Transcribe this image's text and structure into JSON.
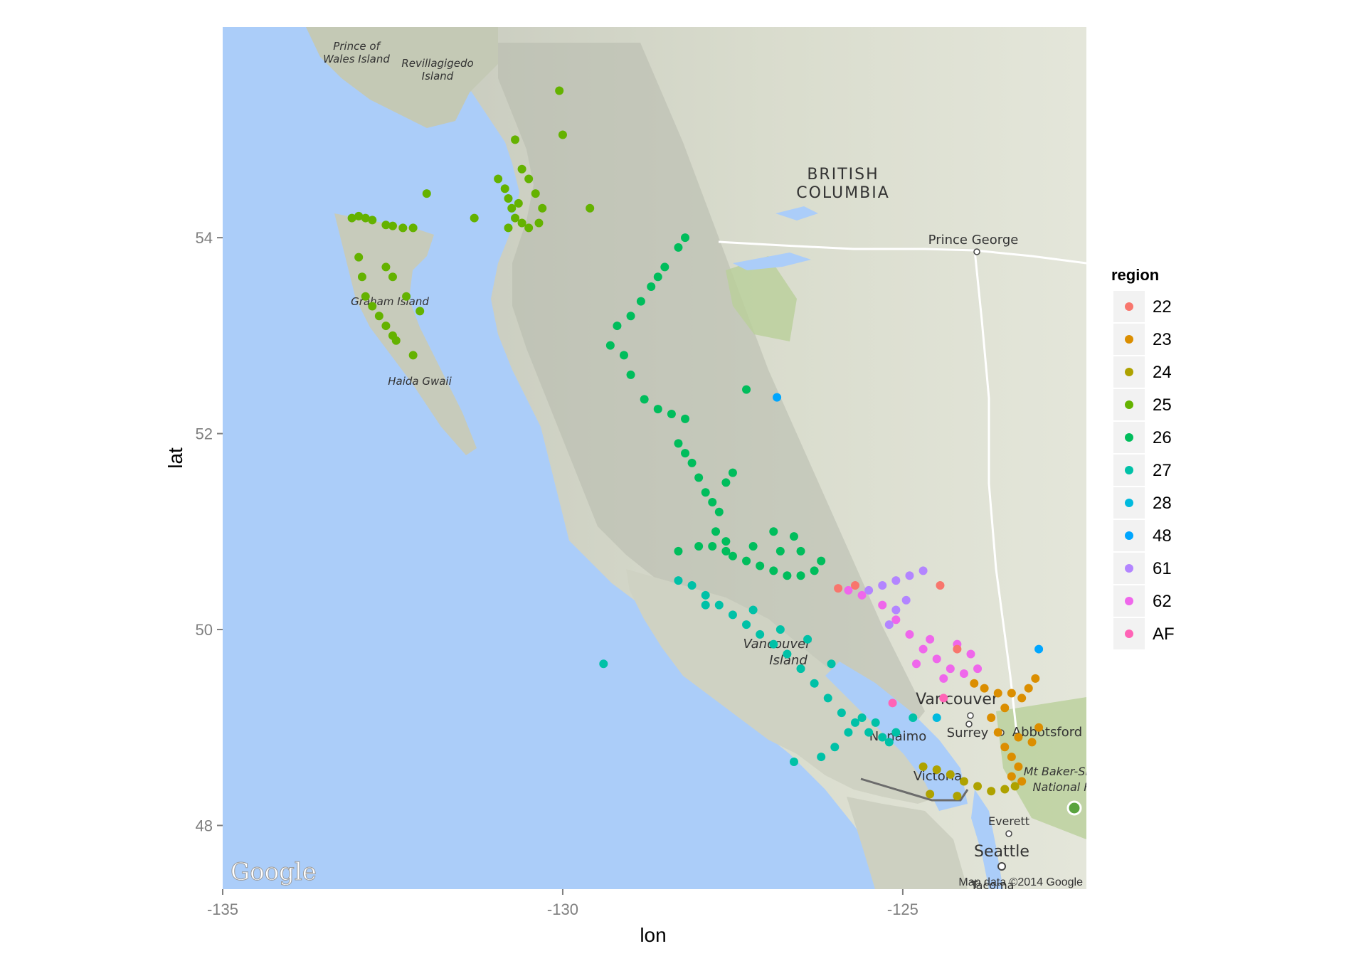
{
  "chart_data": {
    "type": "scatter",
    "title": "",
    "xlabel": "lon",
    "ylabel": "lat",
    "xlim": [
      -135.0,
      -122.3
    ],
    "ylim": [
      47.35,
      56.15
    ],
    "x_ticks": [
      -135,
      -130,
      -125
    ],
    "x_tick_labels": [
      "-135",
      "-130",
      "-125"
    ],
    "y_ticks": [
      48,
      50,
      52,
      54
    ],
    "y_tick_labels": [
      "48",
      "50",
      "52",
      "54"
    ],
    "grid": false,
    "background": "map",
    "legend": {
      "title": "region",
      "placement": "right",
      "entries": [
        {
          "label": "22",
          "color": "#F8766D"
        },
        {
          "label": "23",
          "color": "#DB8E00"
        },
        {
          "label": "24",
          "color": "#AEA200"
        },
        {
          "label": "25",
          "color": "#64B200"
        },
        {
          "label": "26",
          "color": "#00BD5C"
        },
        {
          "label": "27",
          "color": "#00C1A7"
        },
        {
          "label": "28",
          "color": "#00BADE"
        },
        {
          "label": "48",
          "color": "#00A6FF"
        },
        {
          "label": "61",
          "color": "#B385FF"
        },
        {
          "label": "62",
          "color": "#EF67EB"
        },
        {
          "label": "AF",
          "color": "#FF63B6"
        }
      ]
    },
    "series": [
      {
        "name": "25",
        "color": "#64B200",
        "points": [
          [
            -133.1,
            54.2
          ],
          [
            -133.0,
            54.22
          ],
          [
            -132.9,
            54.2
          ],
          [
            -132.8,
            54.18
          ],
          [
            -132.6,
            54.13
          ],
          [
            -132.5,
            54.12
          ],
          [
            -132.35,
            54.1
          ],
          [
            -132.2,
            54.1
          ],
          [
            -133.0,
            53.8
          ],
          [
            -132.95,
            53.6
          ],
          [
            -132.9,
            53.4
          ],
          [
            -132.8,
            53.3
          ],
          [
            -132.7,
            53.2
          ],
          [
            -132.6,
            53.1
          ],
          [
            -132.5,
            53.0
          ],
          [
            -132.45,
            52.95
          ],
          [
            -132.6,
            53.7
          ],
          [
            -132.5,
            53.6
          ],
          [
            -132.3,
            53.4
          ],
          [
            -132.1,
            53.25
          ],
          [
            -132.2,
            52.8
          ],
          [
            -132.0,
            54.45
          ],
          [
            -131.3,
            54.2
          ],
          [
            -130.95,
            54.6
          ],
          [
            -130.85,
            54.5
          ],
          [
            -130.8,
            54.4
          ],
          [
            -130.75,
            54.3
          ],
          [
            -130.7,
            54.2
          ],
          [
            -130.6,
            54.15
          ],
          [
            -130.5,
            54.1
          ],
          [
            -130.6,
            54.7
          ],
          [
            -130.5,
            54.6
          ],
          [
            -130.4,
            54.45
          ],
          [
            -130.3,
            54.3
          ],
          [
            -130.35,
            54.15
          ],
          [
            -130.8,
            54.1
          ],
          [
            -130.65,
            54.35
          ],
          [
            -130.7,
            55.0
          ],
          [
            -130.0,
            55.05
          ],
          [
            -130.05,
            55.5
          ],
          [
            -129.6,
            54.3
          ]
        ]
      },
      {
        "name": "26",
        "color": "#00BD5C",
        "points": [
          [
            -128.2,
            54.0
          ],
          [
            -128.3,
            53.9
          ],
          [
            -128.5,
            53.7
          ],
          [
            -128.6,
            53.6
          ],
          [
            -128.7,
            53.5
          ],
          [
            -128.85,
            53.35
          ],
          [
            -129.0,
            53.2
          ],
          [
            -129.2,
            53.1
          ],
          [
            -129.3,
            52.9
          ],
          [
            -129.1,
            52.8
          ],
          [
            -129.0,
            52.6
          ],
          [
            -128.8,
            52.35
          ],
          [
            -128.6,
            52.25
          ],
          [
            -128.4,
            52.2
          ],
          [
            -128.2,
            52.15
          ],
          [
            -128.3,
            51.9
          ],
          [
            -128.2,
            51.8
          ],
          [
            -128.1,
            51.7
          ],
          [
            -128.0,
            51.55
          ],
          [
            -127.9,
            51.4
          ],
          [
            -127.8,
            51.3
          ],
          [
            -127.7,
            51.2
          ],
          [
            -127.75,
            51.0
          ],
          [
            -127.8,
            50.85
          ],
          [
            -127.6,
            50.8
          ],
          [
            -127.5,
            50.75
          ],
          [
            -127.3,
            50.7
          ],
          [
            -127.1,
            50.65
          ],
          [
            -126.9,
            50.6
          ],
          [
            -126.7,
            50.55
          ],
          [
            -126.5,
            50.55
          ],
          [
            -126.3,
            50.6
          ],
          [
            -126.2,
            50.7
          ],
          [
            -126.5,
            50.8
          ],
          [
            -126.8,
            50.8
          ],
          [
            -127.2,
            50.85
          ],
          [
            -127.6,
            50.9
          ],
          [
            -128.0,
            50.85
          ],
          [
            -128.3,
            50.8
          ],
          [
            -127.5,
            51.6
          ],
          [
            -127.6,
            51.5
          ],
          [
            -127.3,
            52.45
          ],
          [
            -126.9,
            51.0
          ],
          [
            -126.6,
            50.95
          ]
        ]
      },
      {
        "name": "27",
        "color": "#00C1A7",
        "points": [
          [
            -128.3,
            50.5
          ],
          [
            -128.1,
            50.45
          ],
          [
            -127.9,
            50.35
          ],
          [
            -127.7,
            50.25
          ],
          [
            -127.5,
            50.15
          ],
          [
            -127.3,
            50.05
          ],
          [
            -127.1,
            49.95
          ],
          [
            -126.9,
            49.85
          ],
          [
            -126.7,
            49.75
          ],
          [
            -126.5,
            49.6
          ],
          [
            -126.3,
            49.45
          ],
          [
            -126.1,
            49.3
          ],
          [
            -125.9,
            49.15
          ],
          [
            -125.7,
            49.05
          ],
          [
            -125.5,
            48.95
          ],
          [
            -125.3,
            48.9
          ],
          [
            -125.2,
            48.85
          ],
          [
            -125.1,
            48.95
          ],
          [
            -125.4,
            49.05
          ],
          [
            -125.6,
            49.1
          ],
          [
            -125.8,
            48.95
          ],
          [
            -126.0,
            48.8
          ],
          [
            -126.2,
            48.7
          ],
          [
            -126.6,
            48.65
          ],
          [
            -129.4,
            49.65
          ],
          [
            -127.2,
            50.2
          ],
          [
            -126.8,
            50.0
          ],
          [
            -126.4,
            49.9
          ],
          [
            -127.9,
            50.25
          ],
          [
            -126.05,
            49.65
          ],
          [
            -124.85,
            49.1
          ]
        ]
      },
      {
        "name": "28",
        "color": "#00BADE",
        "points": [
          [
            -124.5,
            49.1
          ]
        ]
      },
      {
        "name": "48",
        "color": "#00A6FF",
        "points": [
          [
            -126.85,
            52.37
          ],
          [
            -123.0,
            49.8
          ]
        ]
      },
      {
        "name": "61",
        "color": "#B385FF",
        "points": [
          [
            -125.5,
            50.4
          ],
          [
            -125.3,
            50.45
          ],
          [
            -125.1,
            50.5
          ],
          [
            -124.9,
            50.55
          ],
          [
            -124.95,
            50.3
          ],
          [
            -125.1,
            50.2
          ],
          [
            -125.2,
            50.05
          ],
          [
            -124.7,
            50.6
          ]
        ]
      },
      {
        "name": "62",
        "color": "#EF67EB",
        "points": [
          [
            -125.8,
            50.4
          ],
          [
            -125.6,
            50.35
          ],
          [
            -125.3,
            50.25
          ],
          [
            -125.1,
            50.1
          ],
          [
            -124.9,
            49.95
          ],
          [
            -124.7,
            49.8
          ],
          [
            -124.5,
            49.7
          ],
          [
            -124.3,
            49.6
          ],
          [
            -124.1,
            49.55
          ],
          [
            -123.9,
            49.6
          ],
          [
            -124.6,
            49.9
          ],
          [
            -124.4,
            49.5
          ],
          [
            -124.8,
            49.65
          ],
          [
            -124.2,
            49.85
          ],
          [
            -124.0,
            49.75
          ]
        ]
      },
      {
        "name": "22",
        "color": "#F8766D",
        "points": [
          [
            -125.95,
            50.42
          ],
          [
            -125.7,
            50.45
          ],
          [
            -124.45,
            50.45
          ],
          [
            -124.2,
            49.8
          ]
        ]
      },
      {
        "name": "AF",
        "color": "#FF63B6",
        "points": [
          [
            -125.15,
            49.25
          ],
          [
            -124.4,
            49.3
          ]
        ]
      },
      {
        "name": "23",
        "color": "#DB8E00",
        "points": [
          [
            -123.95,
            49.45
          ],
          [
            -123.8,
            49.4
          ],
          [
            -123.6,
            49.35
          ],
          [
            -123.4,
            49.35
          ],
          [
            -123.25,
            49.3
          ],
          [
            -123.5,
            49.2
          ],
          [
            -123.7,
            49.1
          ],
          [
            -123.6,
            48.95
          ],
          [
            -123.5,
            48.8
          ],
          [
            -123.4,
            48.7
          ],
          [
            -123.3,
            48.6
          ],
          [
            -123.4,
            48.5
          ],
          [
            -123.25,
            48.45
          ],
          [
            -123.1,
            48.85
          ],
          [
            -123.0,
            49.0
          ],
          [
            -123.15,
            49.4
          ],
          [
            -123.05,
            49.5
          ],
          [
            -123.3,
            48.9
          ]
        ]
      },
      {
        "name": "24",
        "color": "#AEA200",
        "points": [
          [
            -124.7,
            48.6
          ],
          [
            -124.5,
            48.57
          ],
          [
            -124.3,
            48.52
          ],
          [
            -124.1,
            48.45
          ],
          [
            -123.9,
            48.4
          ],
          [
            -123.7,
            48.35
          ],
          [
            -123.5,
            48.37
          ],
          [
            -123.35,
            48.4
          ],
          [
            -124.6,
            48.32
          ],
          [
            -124.2,
            48.3
          ]
        ]
      }
    ]
  },
  "map": {
    "labels": {
      "prince_of_wales": [
        "Prince of",
        "Wales Island"
      ],
      "revillagigedo": [
        "Revillagigedo",
        "Island"
      ],
      "british_columbia": [
        "BRITISH",
        "COLUMBIA"
      ],
      "prince_george": "Prince George",
      "graham_island": "Graham Island",
      "haida_gwaii": "Haida Gwaii",
      "vancouver_island": [
        "Vancouver",
        "Island"
      ],
      "vancouver": "Vancouver",
      "nanaimo": "Nanaimo",
      "surrey": "Surrey",
      "abbotsford": "Abbotsford",
      "victoria": "Victoria",
      "mt_baker": [
        "Mt Baker-Sno",
        "National F"
      ],
      "everett": "Everett",
      "seattle": "Seattle",
      "tacoma": "Tacoma"
    },
    "google_logo": "Google",
    "attribution": "Map data ©2014 Google"
  }
}
